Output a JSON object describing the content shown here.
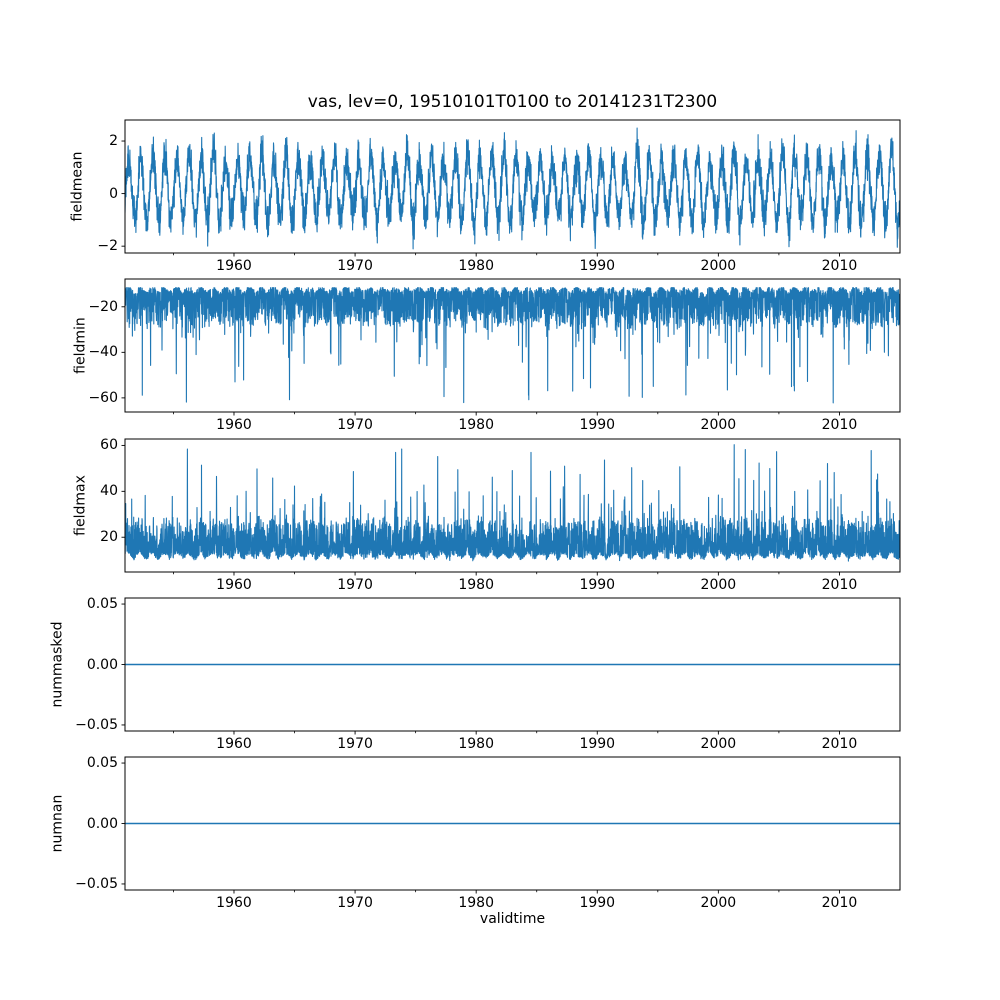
{
  "chart_data": {
    "type": "line",
    "title": "vas, lev=0, 19510101T0100 to 20141231T2300",
    "xlabel": "validtime",
    "x_start_year": 1951,
    "x_end_year": 2015,
    "xticks": [
      {
        "year": 1960,
        "label": "1960"
      },
      {
        "year": 1970,
        "label": "1970"
      },
      {
        "year": 1980,
        "label": "1980"
      },
      {
        "year": 1990,
        "label": "1990"
      },
      {
        "year": 2000,
        "label": "2000"
      },
      {
        "year": 2010,
        "label": "2010"
      }
    ],
    "xticks_minor": [
      1955,
      1965,
      1975,
      1985,
      1995,
      2005
    ],
    "line_color": "#1f77b4",
    "axis_color": "#000000",
    "background": "#ffffff",
    "grid": false,
    "legend": false,
    "points_per_year": 72,
    "subplots": [
      {
        "name": "fieldmean",
        "ylabel": "fieldmean",
        "ylim": [
          -2.26,
          2.8
        ],
        "yticks": [
          {
            "value": 2,
            "label": "2"
          },
          {
            "value": 0,
            "label": "0"
          },
          {
            "value": -2,
            "label": "−2"
          }
        ],
        "series": {
          "kind": "seasonal_noise",
          "base": 0.2,
          "amp_min": 0.95,
          "amp_max": 1.45,
          "noise": 0.6,
          "clamp": [
            -2.12,
            2.55
          ],
          "seed": 101
        }
      },
      {
        "name": "fieldmin",
        "ylabel": "fieldmin",
        "ylim": [
          -66.2,
          -7.8
        ],
        "yticks": [
          {
            "value": -20,
            "label": "−20"
          },
          {
            "value": -40,
            "label": "−40"
          },
          {
            "value": -60,
            "label": "−60"
          }
        ],
        "series": {
          "kind": "band_spikes",
          "direction": -1,
          "edge": -12.3,
          "band": 16,
          "band_pow": 2.2,
          "seasonal": 1.2,
          "jitter": 0.7,
          "spike_prob": 0.05,
          "spike_base": 6,
          "spike_var": 40,
          "clamp": [
            -63,
            -11.6
          ],
          "seed": 202
        }
      },
      {
        "name": "fieldmax",
        "ylabel": "fieldmax",
        "ylim": [
          4.85,
          62.8
        ],
        "yticks": [
          {
            "value": 60,
            "label": "60"
          },
          {
            "value": 40,
            "label": "40"
          },
          {
            "value": 20,
            "label": "20"
          }
        ],
        "series": {
          "kind": "band_spikes",
          "direction": 1,
          "edge": 11.8,
          "band": 16,
          "band_pow": 2.2,
          "seasonal": 1.2,
          "jitter": 0.7,
          "spike_prob": 0.05,
          "spike_base": 6,
          "spike_var": 42,
          "clamp": [
            8.7,
            60.3
          ],
          "seed": 303
        }
      },
      {
        "name": "nummasked",
        "ylabel": "nummasked",
        "ylim": [
          -0.055,
          0.055
        ],
        "yticks": [
          {
            "value": 0.05,
            "label": "0.05"
          },
          {
            "value": 0,
            "label": "0.00"
          },
          {
            "value": -0.05,
            "label": "−0.05"
          }
        ],
        "series": {
          "kind": "constant",
          "value": 0
        }
      },
      {
        "name": "numnan",
        "ylabel": "numnan",
        "ylim": [
          -0.055,
          0.055
        ],
        "yticks": [
          {
            "value": 0.05,
            "label": "0.05"
          },
          {
            "value": 0,
            "label": "0.00"
          },
          {
            "value": -0.05,
            "label": "−0.05"
          }
        ],
        "series": {
          "kind": "constant",
          "value": 0
        }
      }
    ]
  }
}
